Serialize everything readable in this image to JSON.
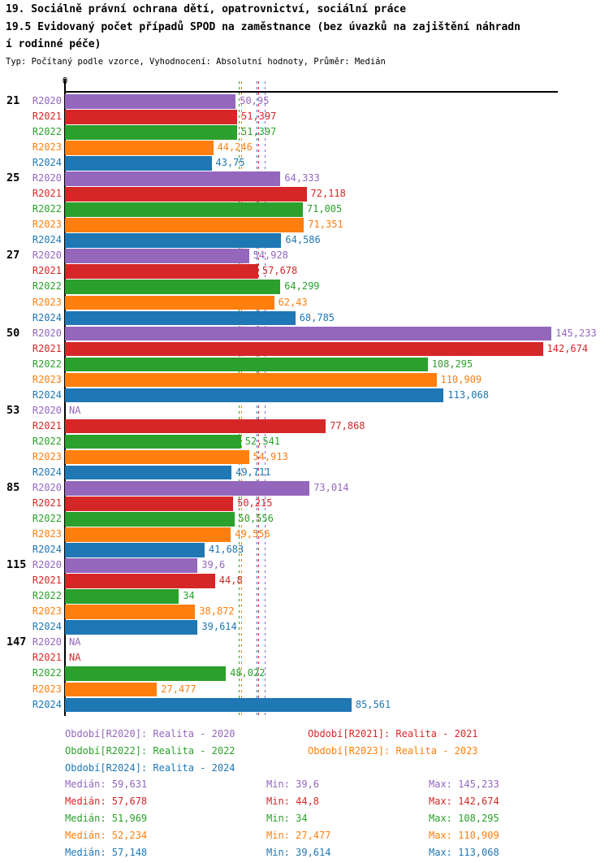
{
  "header": {
    "title": "19. Sociálně právní ochrana dětí, opatrovnictví, sociální práce",
    "subtitle_line1": "19.5 Evidovaný počet případů SPOD na zaměstnance (bez úvazků na zajištění náhradn",
    "subtitle_line2": "í rodinné péče)",
    "meta": "Typ: Počítaný podle vzorce, Vyhodnocení: Absolutní hodnoty, Průměr: Medián"
  },
  "axis": {
    "origin_label": "0"
  },
  "chart_data": {
    "type": "bar",
    "orientation": "horizontal",
    "title": "19.5 Evidovaný počet případů SPOD na zaměstnance (bez úvazků na zajištění náhradní rodinné péče)",
    "categories": [
      "21",
      "25",
      "27",
      "50",
      "53",
      "85",
      "115",
      "147"
    ],
    "xlim": [
      0,
      147
    ],
    "grid": false,
    "legend_position": "bottom",
    "na_text": "NA",
    "reference_lines": "dashed vertical line per series at its median",
    "series": [
      {
        "row_label": "R2020",
        "legend": "Období[R2020]: Realita - 2020",
        "color": "#9467bd",
        "values": [
          50.95,
          64.333,
          54.928,
          145.233,
          null,
          73.014,
          39.6,
          null
        ],
        "display": [
          "50,95",
          "64,333",
          "54,928",
          "145,233",
          "NA",
          "73,014",
          "39,6",
          "NA"
        ],
        "median": 59.631,
        "stats": {
          "median": "Medián: 59,631",
          "min": "Min: 39,6",
          "max": "Max: 145,233"
        }
      },
      {
        "row_label": "R2021",
        "legend": "Období[R2021]: Realita - 2021",
        "color": "#d62728",
        "values": [
          51.397,
          72.118,
          57.678,
          142.674,
          77.868,
          50.215,
          44.8,
          null
        ],
        "display": [
          "51,397",
          "72,118",
          "57,678",
          "142,674",
          "77,868",
          "50,215",
          "44,8",
          "NA"
        ],
        "median": 57.678,
        "stats": {
          "median": "Medián: 57,678",
          "min": "Min: 44,8",
          "max": "Max: 142,674"
        }
      },
      {
        "row_label": "R2022",
        "legend": "Období[R2022]: Realita - 2022",
        "color": "#2ca02c",
        "values": [
          51.397,
          71.005,
          64.299,
          108.295,
          52.541,
          50.556,
          34,
          48.022
        ],
        "display": [
          "51,397",
          "71,005",
          "64,299",
          "108,295",
          "52,541",
          "50,556",
          "34",
          "48,022"
        ],
        "median": 51.969,
        "stats": {
          "median": "Medián: 51,969",
          "min": "Min: 34",
          "max": "Max: 108,295"
        }
      },
      {
        "row_label": "R2023",
        "legend": "Období[R2023]: Realita - 2023",
        "color": "#ff7f0e",
        "values": [
          44.246,
          71.351,
          62.43,
          110.909,
          54.913,
          49.556,
          38.872,
          27.477
        ],
        "display": [
          "44,246",
          "71,351",
          "62,43",
          "110,909",
          "54,913",
          "49,556",
          "38,872",
          "27,477"
        ],
        "median": 52.234,
        "stats": {
          "median": "Medián: 52,234",
          "min": "Min: 27,477",
          "max": "Max: 110,909"
        }
      },
      {
        "row_label": "R2024",
        "legend": "Období[R2024]: Realita - 2024",
        "color": "#1f77b4",
        "values": [
          43.75,
          64.586,
          68.785,
          113.068,
          49.711,
          41.683,
          39.614,
          85.561
        ],
        "display": [
          "43,75",
          "64,586",
          "68,785",
          "113,068",
          "49,711",
          "41,683",
          "39,614",
          "85,561"
        ],
        "median": 57.148,
        "stats": {
          "median": "Medián: 57,148",
          "min": "Min: 39,614",
          "max": "Max: 113,068"
        }
      }
    ]
  }
}
